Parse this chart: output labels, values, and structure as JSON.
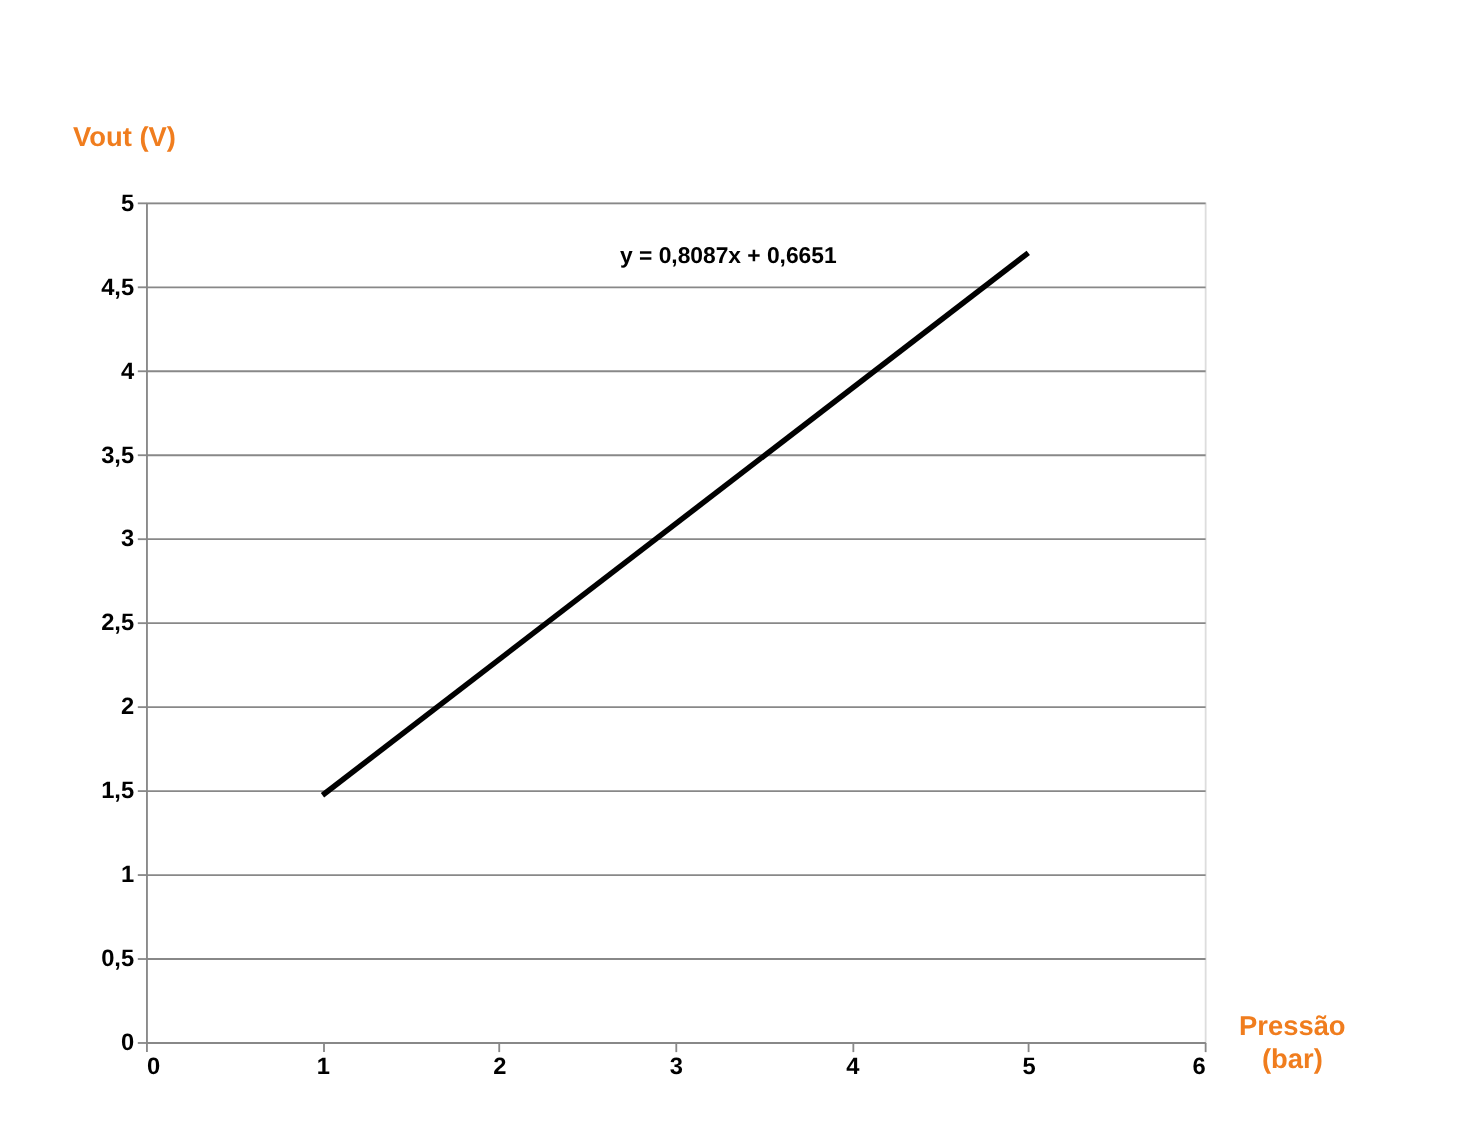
{
  "chart_data": {
    "type": "line",
    "xlabel": "Pressão (bar)",
    "ylabel": "Vout (V)",
    "x": [
      1,
      5
    ],
    "series": [
      {
        "color": "#000000",
        "values": [
          1.47,
          4.7
        ]
      }
    ],
    "annotations": [
      "y = 0,8087x + 0,6651"
    ],
    "xlim": [
      0,
      6
    ],
    "xticks": [
      0,
      1,
      2,
      3,
      4,
      5,
      6
    ],
    "ylim": [
      0,
      5
    ],
    "yticks": [
      0,
      {
        "value": 0.5,
        "label": "0,5"
      },
      1,
      {
        "value": 1.5,
        "label": "1,5"
      },
      2,
      {
        "value": 2.5,
        "label": "2,5"
      },
      3,
      {
        "value": 3.5,
        "label": "3,5"
      },
      4,
      {
        "value": 4.5,
        "label": "4,5"
      },
      5
    ],
    "grid": "y",
    "marker": "none",
    "line_style": "solid"
  }
}
